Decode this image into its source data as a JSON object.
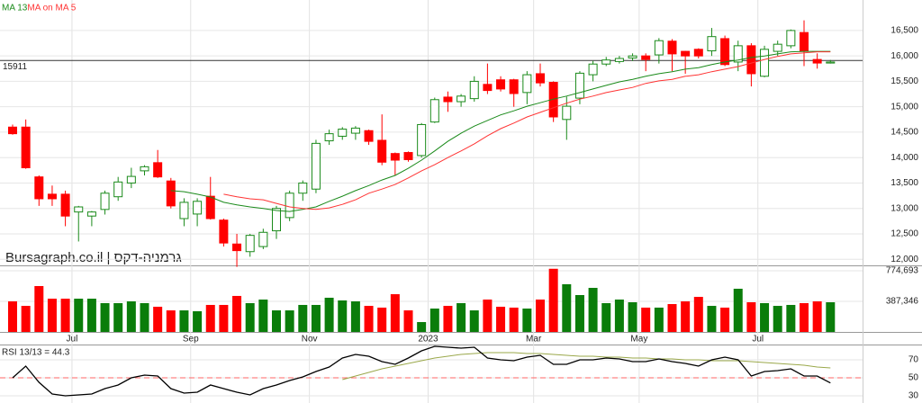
{
  "chart_data": [
    {
      "type": "candlestick",
      "legend": "top-left",
      "categories": [
        null,
        null,
        null,
        null,
        "Jul",
        null,
        null,
        null,
        null,
        null,
        null,
        null,
        null,
        "Sep",
        null,
        null,
        null,
        null,
        null,
        null,
        null,
        null,
        "Nov",
        null,
        null,
        null,
        null,
        null,
        null,
        null,
        null,
        "2023",
        null,
        null,
        null,
        null,
        null,
        null,
        null,
        "Mar",
        null,
        null,
        null,
        null,
        null,
        null,
        null,
        "May",
        null,
        null,
        null,
        null,
        null,
        null,
        null,
        null,
        "Jul",
        null,
        null,
        null,
        null,
        null,
        null
      ],
      "open": [
        14600,
        14600,
        13620,
        13280,
        13280,
        12930,
        12850,
        12980,
        13230,
        13500,
        13740,
        13900,
        13540,
        12800,
        12890,
        13240,
        12770,
        12300,
        12150,
        12250,
        12560,
        12820,
        13300,
        13380,
        14330,
        14420,
        14480,
        14530,
        14340,
        14080,
        14100,
        14040,
        14700,
        15190,
        15100,
        15160,
        15440,
        15530,
        15530,
        15280,
        15650,
        15480,
        14750,
        15170,
        15630,
        15840,
        15890,
        15960,
        16000,
        16020,
        16290,
        16090,
        16130,
        16100,
        16340,
        15880,
        16200,
        15600,
        16090,
        16200,
        16460,
        15930,
        15860
      ],
      "high": [
        14650,
        14750,
        13650,
        13450,
        13350,
        13050,
        12950,
        13350,
        13620,
        13800,
        13850,
        14150,
        13600,
        13200,
        13200,
        13620,
        12800,
        12500,
        12500,
        12600,
        13050,
        13350,
        13550,
        14350,
        14550,
        14600,
        14620,
        14550,
        14850,
        14100,
        14120,
        14680,
        15180,
        15300,
        15250,
        15600,
        15850,
        15600,
        15550,
        15700,
        15850,
        15500,
        15200,
        15700,
        15900,
        15980,
        16000,
        16050,
        16050,
        16350,
        16330,
        16100,
        16150,
        16550,
        16400,
        16300,
        16250,
        16200,
        16300,
        16520,
        16700,
        16050,
        15920
      ],
      "low": [
        14450,
        13780,
        13050,
        13050,
        12650,
        12350,
        12650,
        12880,
        13150,
        13400,
        13650,
        13600,
        13000,
        12650,
        12650,
        12780,
        12250,
        11850,
        12050,
        12200,
        12400,
        12750,
        13150,
        13300,
        14250,
        14350,
        14350,
        14250,
        13850,
        13650,
        13920,
        14000,
        14680,
        14900,
        15000,
        15100,
        15250,
        15300,
        15000,
        15050,
        15400,
        14700,
        14350,
        15050,
        15500,
        15800,
        15850,
        15900,
        15700,
        15850,
        15700,
        15650,
        15950,
        16000,
        15800,
        15700,
        15400,
        15580,
        16000,
        16150,
        15800,
        15750,
        15850
      ],
      "close": [
        14470,
        13800,
        13190,
        13190,
        12850,
        13030,
        12930,
        13300,
        13520,
        13630,
        13820,
        13620,
        13050,
        13120,
        13140,
        12800,
        12320,
        12170,
        12470,
        12530,
        13000,
        13300,
        13500,
        14280,
        14470,
        14560,
        14580,
        14320,
        13910,
        13950,
        13960,
        14650,
        15140,
        15100,
        15210,
        15500,
        15320,
        15350,
        15260,
        15630,
        15470,
        14800,
        15010,
        15660,
        15840,
        15920,
        15950,
        16000,
        15930,
        16300,
        16040,
        16000,
        16000,
        16380,
        15830,
        16200,
        15650,
        16130,
        16230,
        16500,
        16090,
        15860,
        15880
      ],
      "up_color": "#1a8a1a",
      "down_color": "#ff0000",
      "series": [
        {
          "name": "MA 13",
          "color": "#1a8a1a",
          "values": [
            null,
            null,
            null,
            null,
            null,
            null,
            null,
            null,
            null,
            null,
            null,
            null,
            13350,
            13330,
            13280,
            13225,
            13120,
            13070,
            13030,
            13000,
            12960,
            12940,
            12980,
            13030,
            13140,
            13240,
            13350,
            13450,
            13560,
            13650,
            13790,
            13950,
            14130,
            14320,
            14480,
            14620,
            14730,
            14840,
            14920,
            15010,
            15080,
            15150,
            15210,
            15280,
            15350,
            15420,
            15490,
            15540,
            15600,
            15650,
            15690,
            15740,
            15770,
            15830,
            15880,
            15920,
            15970,
            16000,
            16040,
            16080,
            16090,
            16090,
            16090
          ]
        },
        {
          "name": "MA on MA 5",
          "color": "#ff3333",
          "values": [
            null,
            null,
            null,
            null,
            null,
            null,
            null,
            null,
            null,
            null,
            null,
            null,
            null,
            null,
            null,
            null,
            13280,
            13230,
            13190,
            13170,
            13100,
            13030,
            13000,
            12980,
            13010,
            13080,
            13170,
            13300,
            13380,
            13470,
            13600,
            13740,
            13860,
            14000,
            14130,
            14270,
            14430,
            14570,
            14680,
            14800,
            14890,
            14980,
            15070,
            15150,
            15210,
            15280,
            15330,
            15380,
            15460,
            15510,
            15540,
            15600,
            15630,
            15690,
            15740,
            15790,
            15860,
            15930,
            15990,
            16040,
            16060,
            16080,
            16080
          ]
        }
      ],
      "last_price": 15911,
      "watermark": "Bursagraph.co.il | גרמניה-דקס",
      "ylim": [
        11880,
        17100
      ],
      "yticks": [
        {
          "value": 12000,
          "label": "12,000"
        },
        {
          "value": 12500,
          "label": "12,500"
        },
        {
          "value": 13000,
          "label": "13,000"
        },
        {
          "value": 13500,
          "label": "13,500"
        },
        {
          "value": 14000,
          "label": "14,000"
        },
        {
          "value": 14500,
          "label": "14,500"
        },
        {
          "value": 15000,
          "label": "15,000"
        },
        {
          "value": 15500,
          "label": "15,500"
        },
        {
          "value": 16000,
          "label": "16,000"
        },
        {
          "value": 16500,
          "label": "16,500"
        }
      ],
      "grid": true
    },
    {
      "type": "volume",
      "values": [
        387000,
        330000,
        581000,
        421000,
        421000,
        421000,
        421000,
        365000,
        365000,
        387000,
        365000,
        319000,
        273000,
        273000,
        262000,
        342000,
        342000,
        456000,
        365000,
        410000,
        273000,
        273000,
        342000,
        342000,
        433000,
        399000,
        387000,
        330000,
        308000,
        478000,
        273000,
        125000,
        296000,
        330000,
        365000,
        273000,
        410000,
        319000,
        308000,
        296000,
        410000,
        800000,
        604000,
        467000,
        558000,
        365000,
        410000,
        376000,
        308000,
        308000,
        353000,
        387000,
        444000,
        330000,
        308000,
        547000,
        376000,
        365000,
        330000,
        342000,
        365000,
        387000,
        376000
      ],
      "up_color": "#0a7d0a",
      "down_color": "#ff0000",
      "ylim": [
        0,
        843000
      ],
      "yticks": [
        {
          "value": 387346,
          "label": "387,346"
        },
        {
          "value": 774693,
          "label": "774,693"
        }
      ],
      "grid": true
    },
    {
      "type": "line",
      "label": "RSI 13/13 = 44.3",
      "series": [
        {
          "color": "#000000",
          "values": [
            50,
            63,
            45,
            32,
            30,
            31,
            32,
            38,
            42,
            50,
            53,
            52,
            38,
            33,
            34,
            42,
            38,
            34,
            31,
            38,
            42,
            47,
            51,
            57,
            62,
            72,
            76,
            74,
            68,
            65,
            72,
            80,
            85,
            84,
            83,
            84,
            72,
            70,
            69,
            73,
            75,
            65,
            65,
            70,
            70,
            72,
            71,
            68,
            68,
            71,
            68,
            66,
            63,
            70,
            73,
            70,
            52,
            57,
            58,
            60,
            52,
            52,
            44.3
          ]
        },
        {
          "color": "#9aa84a",
          "values": [
            null,
            null,
            null,
            null,
            null,
            null,
            null,
            null,
            null,
            null,
            null,
            null,
            null,
            null,
            null,
            null,
            null,
            null,
            null,
            null,
            null,
            null,
            null,
            null,
            null,
            48,
            52,
            56,
            60,
            63,
            66,
            69,
            72,
            74,
            76,
            77,
            78,
            78,
            78,
            77,
            77,
            76,
            75,
            74,
            74,
            73,
            73,
            72,
            72,
            71,
            71,
            70,
            70,
            69,
            69,
            69,
            68,
            67,
            66,
            65,
            64,
            62,
            61
          ]
        }
      ],
      "reference_line": {
        "value": 50,
        "color": "#ff6666"
      },
      "ylim": [
        22,
        87
      ],
      "yticks": [
        30,
        50,
        70
      ],
      "grid": true
    }
  ]
}
